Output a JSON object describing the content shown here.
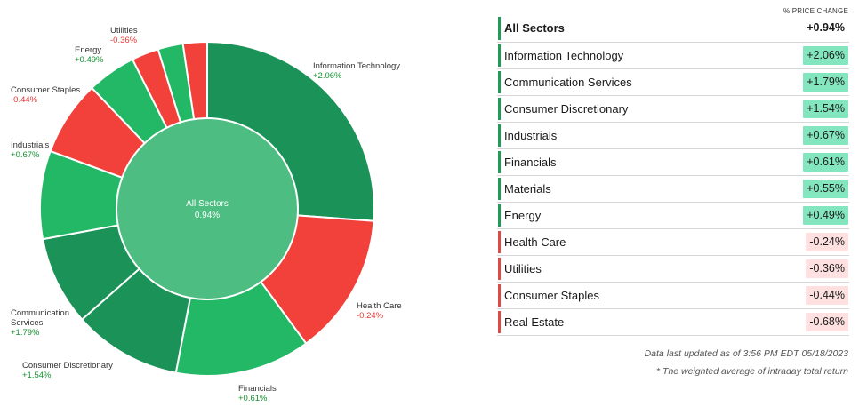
{
  "colors": {
    "pos_dark": "#1b9257",
    "pos_light": "#22b866",
    "neg": "#f2403b",
    "center": "#4dbd82",
    "pos_badge": "#84e6be",
    "neg_badge": "#fde0df",
    "pos_label": "#15922f",
    "neg_label": "#e53935",
    "pos_accent": "#1f9d57",
    "neg_accent": "#e04a44"
  },
  "chart_data": {
    "type": "pie",
    "center_label": "All Sectors",
    "center_value": "0.94%",
    "slices": [
      {
        "name": "Information Technology",
        "label": "+2.06%",
        "weight": 27.0,
        "sign": "pos",
        "shade": "dark"
      },
      {
        "name": "Health Care",
        "label": "-0.24%",
        "weight": 14.2,
        "sign": "neg",
        "shade": "red"
      },
      {
        "name": "Financials",
        "label": "+0.61%",
        "weight": 13.5,
        "sign": "pos",
        "shade": "light"
      },
      {
        "name": "Consumer Discretionary",
        "label": "+1.54%",
        "weight": 10.8,
        "sign": "pos",
        "shade": "dark"
      },
      {
        "name": "Communication Services",
        "label": "+1.79%",
        "weight": 8.9,
        "sign": "pos",
        "shade": "dark"
      },
      {
        "name": "Industrials",
        "label": "+0.67%",
        "weight": 8.8,
        "sign": "pos",
        "shade": "light"
      },
      {
        "name": "Consumer Staples",
        "label": "-0.44%",
        "weight": 7.5,
        "sign": "neg",
        "shade": "red"
      },
      {
        "name": "Energy",
        "label": "+0.49%",
        "weight": 4.9,
        "sign": "pos",
        "shade": "light"
      },
      {
        "name": "Utilities",
        "label": "-0.36%",
        "weight": 2.7,
        "sign": "neg",
        "shade": "red"
      },
      {
        "name": "Materials",
        "label": "",
        "weight": 2.5,
        "sign": "pos",
        "shade": "light"
      },
      {
        "name": "Real Estate",
        "label": "",
        "weight": 2.4,
        "sign": "neg",
        "shade": "red"
      }
    ],
    "outer_labels": [
      {
        "key": "information-technology",
        "lines": [
          "Information Technology"
        ],
        "value": "+2.06%",
        "sign": "pos",
        "align": "start"
      },
      {
        "key": "health-care",
        "lines": [
          "Health Care"
        ],
        "value": "-0.24%",
        "sign": "neg",
        "align": "start"
      },
      {
        "key": "financials",
        "lines": [
          "Financials"
        ],
        "value": "+0.61%",
        "sign": "pos",
        "align": "start"
      },
      {
        "key": "consumer-discretionary",
        "lines": [
          "Consumer Discretionary"
        ],
        "value": "+1.54%",
        "sign": "pos",
        "align": "start"
      },
      {
        "key": "communication-services",
        "lines": [
          "Communication",
          "Services"
        ],
        "value": "+1.79%",
        "sign": "pos",
        "align": "start"
      },
      {
        "key": "industrials",
        "lines": [
          "Industrials"
        ],
        "value": "+0.67%",
        "sign": "pos",
        "align": "start"
      },
      {
        "key": "consumer-staples",
        "lines": [
          "Consumer Staples"
        ],
        "value": "-0.44%",
        "sign": "neg",
        "align": "start"
      },
      {
        "key": "energy",
        "lines": [
          "Energy"
        ],
        "value": "+0.49%",
        "sign": "pos",
        "align": "start"
      },
      {
        "key": "utilities",
        "lines": [
          "Utilities"
        ],
        "value": "-0.36%",
        "sign": "neg",
        "align": "start"
      }
    ]
  },
  "table": {
    "column_header": "% PRICE CHANGE",
    "total": {
      "name": "All Sectors",
      "value": "+0.94%"
    },
    "rows": [
      {
        "name": "Information Technology",
        "value": "+2.06%",
        "sign": "pos"
      },
      {
        "name": "Communication Services",
        "value": "+1.79%",
        "sign": "pos"
      },
      {
        "name": "Consumer Discretionary",
        "value": "+1.54%",
        "sign": "pos"
      },
      {
        "name": "Industrials",
        "value": "+0.67%",
        "sign": "pos"
      },
      {
        "name": "Financials",
        "value": "+0.61%",
        "sign": "pos"
      },
      {
        "name": "Materials",
        "value": "+0.55%",
        "sign": "pos"
      },
      {
        "name": "Energy",
        "value": "+0.49%",
        "sign": "pos"
      },
      {
        "name": "Health Care",
        "value": "-0.24%",
        "sign": "neg"
      },
      {
        "name": "Utilities",
        "value": "-0.36%",
        "sign": "neg"
      },
      {
        "name": "Consumer Staples",
        "value": "-0.44%",
        "sign": "neg"
      },
      {
        "name": "Real Estate",
        "value": "-0.68%",
        "sign": "neg"
      }
    ],
    "footnote_updated": "Data last updated as of 3:56 PM EDT 05/18/2023",
    "footnote_method": "* The weighted average of intraday total return"
  }
}
